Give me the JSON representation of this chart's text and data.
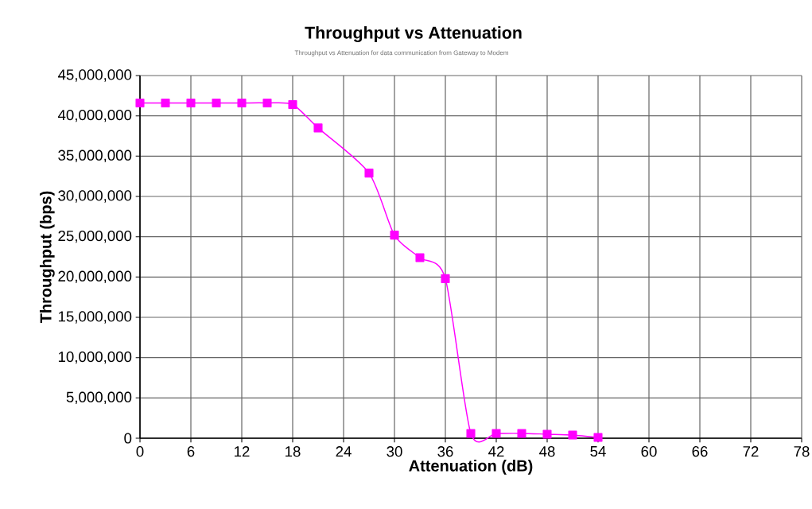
{
  "chart_data": {
    "type": "line",
    "title": "Throughput vs Attenuation",
    "subtitle": "Throughput vs Attenuation for data communication from Gateway to Modem",
    "xlabel": "Attenuation (dB)",
    "ylabel": "Throughput (bps)",
    "x": [
      0,
      3,
      6,
      9,
      12,
      15,
      18,
      21,
      27,
      30,
      33,
      36,
      39,
      42,
      45,
      48,
      51,
      54
    ],
    "series": [
      {
        "color": "#ff00ff",
        "values": [
          41600000,
          41600000,
          41600000,
          41600000,
          41600000,
          41600000,
          41400000,
          38500000,
          32900000,
          25200000,
          22400000,
          19800000,
          600000,
          600000,
          600000,
          500000,
          400000,
          100000
        ]
      }
    ],
    "xlim": [
      0,
      78
    ],
    "ylim": [
      0,
      45000000
    ],
    "xticks": [
      0,
      6,
      12,
      18,
      24,
      30,
      36,
      42,
      48,
      54,
      60,
      66,
      72,
      78
    ],
    "yticks": [
      {
        "value": 0,
        "label": "0"
      },
      {
        "value": 5000000,
        "label": "5,000,000"
      },
      {
        "value": 10000000,
        "label": "10,000,000"
      },
      {
        "value": 15000000,
        "label": "15,000,000"
      },
      {
        "value": 20000000,
        "label": "20,000,000"
      },
      {
        "value": 25000000,
        "label": "25,000,000"
      },
      {
        "value": 30000000,
        "label": "30,000,000"
      },
      {
        "value": 35000000,
        "label": "35,000,000"
      },
      {
        "value": 40000000,
        "label": "40,000,000"
      },
      {
        "value": 45000000,
        "label": "45,000,000"
      }
    ],
    "grid": true,
    "marker": "square",
    "line_style": "solid"
  }
}
